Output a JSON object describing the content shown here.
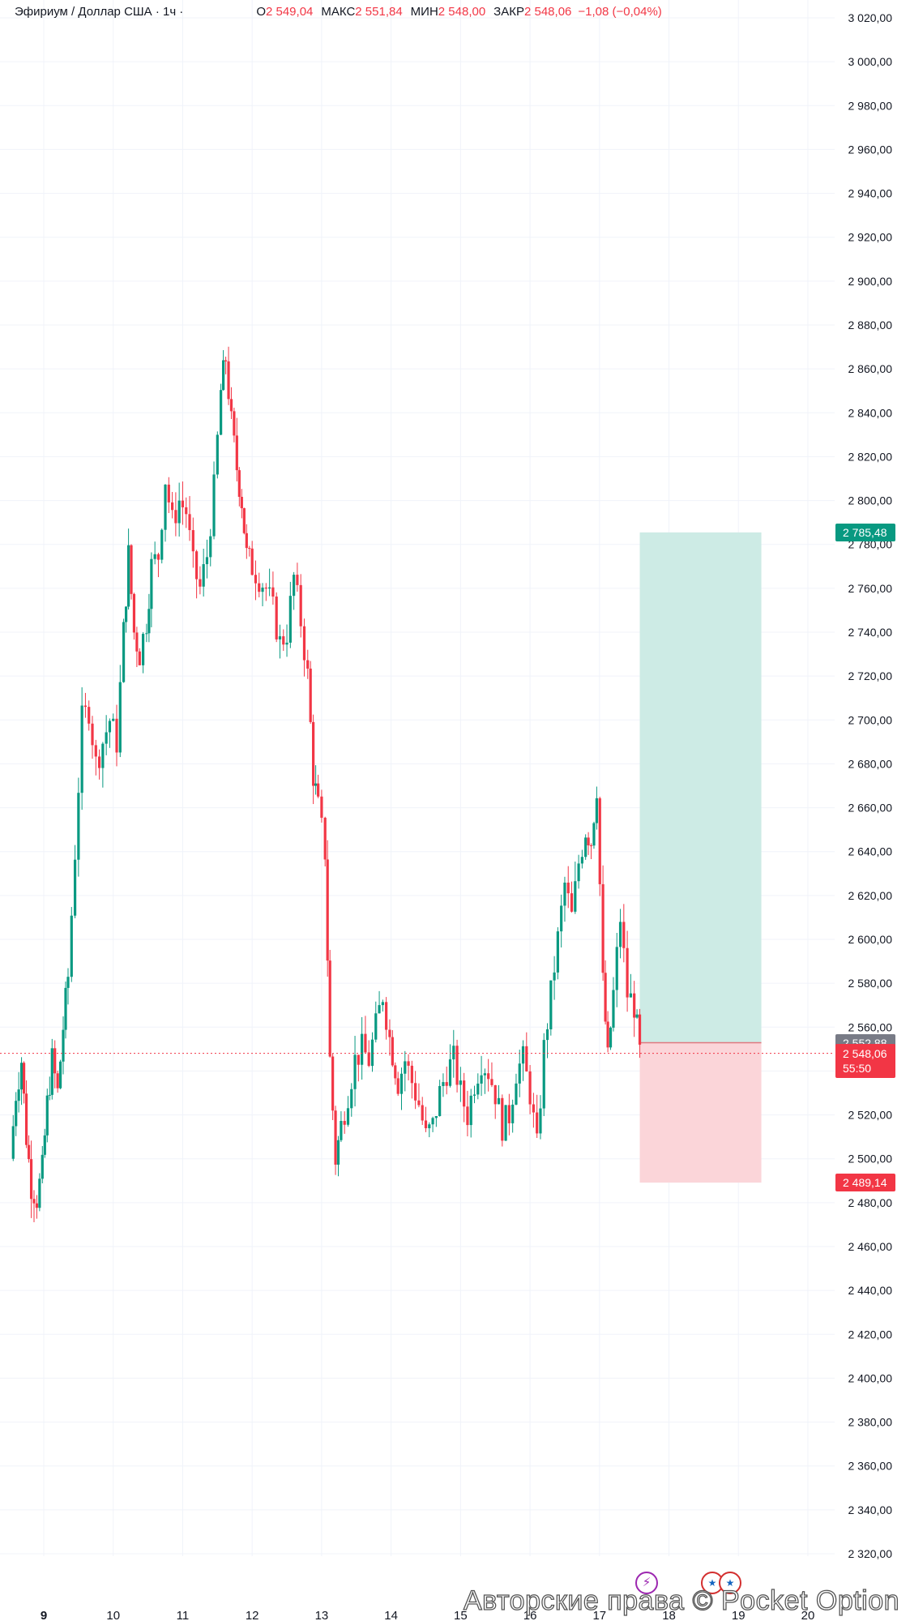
{
  "header": {
    "symbol": "Эфириум / Доллар США · 1ч ·",
    "open_label": "О",
    "open": "2 549,04",
    "high_label": "МАКС",
    "high": "2 551,84",
    "low_label": "МИН",
    "low": "2 548,00",
    "close_label": "ЗАКР",
    "close": "2 548,06",
    "change": "−1,08 (−0,04%)"
  },
  "price_tags": {
    "target": "2 785,48",
    "entry": "2 552,88",
    "current": "2 548,06",
    "countdown": "55:50",
    "stop": "2 489,14"
  },
  "watermark": "Авторские права © Pocket Option",
  "colors": {
    "up": "#089981",
    "down": "#f23645",
    "target_zone": "#cdebe5",
    "stop_zone": "#fbd5d9",
    "entry_tag": "#787b86"
  },
  "chart_data": {
    "type": "candlestick",
    "title": "Эфириум / Доллар США",
    "interval": "1ч",
    "y_ticks": [
      "3 020,00",
      "3 000,00",
      "2 980,00",
      "2 960,00",
      "2 940,00",
      "2 920,00",
      "2 900,00",
      "2 880,00",
      "2 860,00",
      "2 840,00",
      "2 820,00",
      "2 800,00",
      "2 780,00",
      "2 760,00",
      "2 740,00",
      "2 720,00",
      "2 700,00",
      "2 680,00",
      "2 660,00",
      "2 640,00",
      "2 620,00",
      "2 600,00",
      "2 580,00",
      "2 560,00",
      "2 540,00",
      "2 520,00",
      "2 500,00",
      "2 480,00",
      "2 460,00",
      "2 440,00",
      "2 420,00",
      "2 400,00",
      "2 380,00",
      "2 360,00",
      "2 340,00",
      "2 320,00"
    ],
    "ylim": [
      2310,
      3020
    ],
    "x_ticks": [
      "9",
      "10",
      "11",
      "12",
      "13",
      "14",
      "15",
      "16",
      "17",
      "18",
      "19",
      "20"
    ],
    "x_tick_positions_days": [
      9,
      10,
      11,
      12,
      13,
      14,
      15,
      16,
      17,
      18,
      19,
      20
    ],
    "current_price": 2548.06,
    "position": {
      "type": "long",
      "entry": 2552.88,
      "target": 2785.48,
      "stop": 2489.14,
      "start_day": 17.58,
      "end_day": 19.33
    },
    "path": [
      [
        8.52,
        2500
      ],
      [
        8.6,
        2530
      ],
      [
        8.68,
        2545
      ],
      [
        8.75,
        2510
      ],
      [
        8.82,
        2488
      ],
      [
        8.9,
        2482
      ],
      [
        8.98,
        2495
      ],
      [
        9.05,
        2525
      ],
      [
        9.12,
        2545
      ],
      [
        9.2,
        2530
      ],
      [
        9.28,
        2560
      ],
      [
        9.35,
        2583
      ],
      [
        9.45,
        2640
      ],
      [
        9.55,
        2700
      ],
      [
        9.65,
        2705
      ],
      [
        9.75,
        2680
      ],
      [
        9.85,
        2690
      ],
      [
        9.95,
        2700
      ],
      [
        10.05,
        2690
      ],
      [
        10.15,
        2740
      ],
      [
        10.22,
        2775
      ],
      [
        10.3,
        2740
      ],
      [
        10.38,
        2730
      ],
      [
        10.48,
        2745
      ],
      [
        10.55,
        2770
      ],
      [
        10.65,
        2775
      ],
      [
        10.75,
        2810
      ],
      [
        10.85,
        2790
      ],
      [
        10.95,
        2800
      ],
      [
        11.05,
        2795
      ],
      [
        11.15,
        2770
      ],
      [
        11.25,
        2760
      ],
      [
        11.35,
        2775
      ],
      [
        11.45,
        2805
      ],
      [
        11.55,
        2850
      ],
      [
        11.62,
        2865
      ],
      [
        11.7,
        2835
      ],
      [
        11.78,
        2815
      ],
      [
        11.85,
        2800
      ],
      [
        11.92,
        2775
      ],
      [
        12.0,
        2770
      ],
      [
        12.1,
        2765
      ],
      [
        12.2,
        2760
      ],
      [
        12.3,
        2750
      ],
      [
        12.4,
        2735
      ],
      [
        12.5,
        2740
      ],
      [
        12.6,
        2765
      ],
      [
        12.7,
        2745
      ],
      [
        12.8,
        2720
      ],
      [
        12.88,
        2675
      ],
      [
        12.95,
        2660
      ],
      [
        13.05,
        2640
      ],
      [
        13.12,
        2545
      ],
      [
        13.2,
        2500
      ],
      [
        13.28,
        2515
      ],
      [
        13.38,
        2530
      ],
      [
        13.48,
        2545
      ],
      [
        13.58,
        2550
      ],
      [
        13.68,
        2545
      ],
      [
        13.78,
        2560
      ],
      [
        13.88,
        2575
      ],
      [
        13.98,
        2555
      ],
      [
        14.1,
        2535
      ],
      [
        14.2,
        2545
      ],
      [
        14.3,
        2535
      ],
      [
        14.4,
        2525
      ],
      [
        14.5,
        2510
      ],
      [
        14.6,
        2515
      ],
      [
        14.7,
        2530
      ],
      [
        14.8,
        2540
      ],
      [
        14.9,
        2545
      ],
      [
        15.0,
        2530
      ],
      [
        15.1,
        2520
      ],
      [
        15.2,
        2535
      ],
      [
        15.3,
        2545
      ],
      [
        15.4,
        2540
      ],
      [
        15.5,
        2530
      ],
      [
        15.6,
        2515
      ],
      [
        15.7,
        2520
      ],
      [
        15.8,
        2540
      ],
      [
        15.9,
        2545
      ],
      [
        16.0,
        2530
      ],
      [
        16.1,
        2505
      ],
      [
        16.2,
        2550
      ],
      [
        16.3,
        2575
      ],
      [
        16.4,
        2600
      ],
      [
        16.5,
        2625
      ],
      [
        16.6,
        2610
      ],
      [
        16.7,
        2635
      ],
      [
        16.8,
        2650
      ],
      [
        16.88,
        2645
      ],
      [
        16.96,
        2670
      ],
      [
        17.05,
        2580
      ],
      [
        17.12,
        2545
      ],
      [
        17.2,
        2575
      ],
      [
        17.3,
        2610
      ],
      [
        17.4,
        2575
      ],
      [
        17.5,
        2570
      ],
      [
        17.58,
        2548
      ]
    ]
  }
}
